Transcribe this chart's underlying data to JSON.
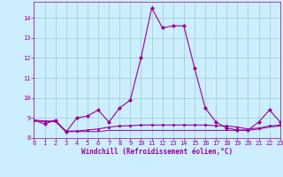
{
  "background_color": "#cceeff",
  "line_color": "#990099",
  "grid_color": "#99cccc",
  "xlabel": "Windchill (Refroidissement éolien,°C)",
  "x_values": [
    0,
    1,
    2,
    3,
    4,
    5,
    6,
    7,
    8,
    9,
    10,
    11,
    12,
    13,
    14,
    15,
    16,
    17,
    18,
    19,
    20,
    21,
    22,
    23
  ],
  "line1_y": [
    8.9,
    8.7,
    8.9,
    8.3,
    9.0,
    9.1,
    9.4,
    8.8,
    9.5,
    9.9,
    12.0,
    14.5,
    13.5,
    13.6,
    13.6,
    11.5,
    9.5,
    8.8,
    8.5,
    8.4,
    8.4,
    8.8,
    9.4,
    8.8
  ],
  "line2_y": [
    8.9,
    8.85,
    8.85,
    8.35,
    8.35,
    8.4,
    8.45,
    8.55,
    8.6,
    8.62,
    8.65,
    8.65,
    8.65,
    8.65,
    8.65,
    8.65,
    8.65,
    8.62,
    8.6,
    8.55,
    8.45,
    8.5,
    8.6,
    8.65
  ],
  "line3_y": [
    8.85,
    8.82,
    8.82,
    8.32,
    8.32,
    8.32,
    8.32,
    8.38,
    8.38,
    8.38,
    8.38,
    8.38,
    8.38,
    8.38,
    8.38,
    8.38,
    8.38,
    8.38,
    8.38,
    8.38,
    8.38,
    8.45,
    8.55,
    8.6
  ],
  "ylim": [
    8.0,
    14.8
  ],
  "yticks": [
    8,
    9,
    10,
    11,
    12,
    13,
    14
  ],
  "xlim": [
    0,
    23
  ],
  "xticks": [
    0,
    1,
    2,
    3,
    4,
    5,
    6,
    7,
    8,
    9,
    10,
    11,
    12,
    13,
    14,
    15,
    16,
    17,
    18,
    19,
    20,
    21,
    22,
    23
  ]
}
